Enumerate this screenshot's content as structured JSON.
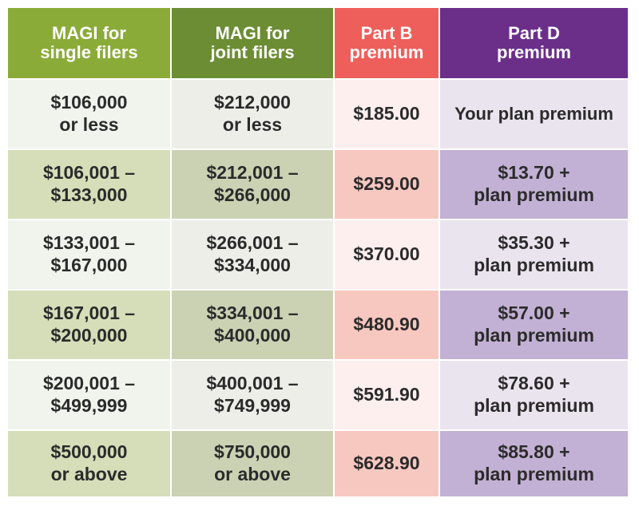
{
  "table": {
    "headers": {
      "single": "MAGI for\nsingle filers",
      "joint": "MAGI for\njoint filers",
      "part_b": "Part B\npremium",
      "part_d": "Part D\npremium"
    },
    "rows": [
      {
        "single": "$106,000\nor less",
        "joint": "$212,000\nor less",
        "part_b": "$185.00",
        "part_d": "Your plan premium"
      },
      {
        "single": "$106,001 –\n$133,000",
        "joint": "$212,001 –\n$266,000",
        "part_b": "$259.00",
        "part_d": "$13.70 +\nplan premium"
      },
      {
        "single": "$133,001 –\n$167,000",
        "joint": "$266,001 –\n$334,000",
        "part_b": "$370.00",
        "part_d": "$35.30 +\nplan premium"
      },
      {
        "single": "$167,001 –\n$200,000",
        "joint": "$334,001 –\n$400,000",
        "part_b": "$480.90",
        "part_d": "$57.00 +\nplan premium"
      },
      {
        "single": "$200,001 –\n$499,999",
        "joint": "$400,001 –\n$749,999",
        "part_b": "$591.90",
        "part_d": "$78.60 +\nplan premium"
      },
      {
        "single": "$500,000\nor above",
        "joint": "$750,000\nor above",
        "part_b": "$628.90",
        "part_d": "$85.80 +\nplan premium"
      }
    ]
  },
  "colors": {
    "header_single": "#8bab39",
    "header_joint": "#6c8d33",
    "header_part_b": "#ee5f5b",
    "header_part_d": "#6b2f8a"
  }
}
